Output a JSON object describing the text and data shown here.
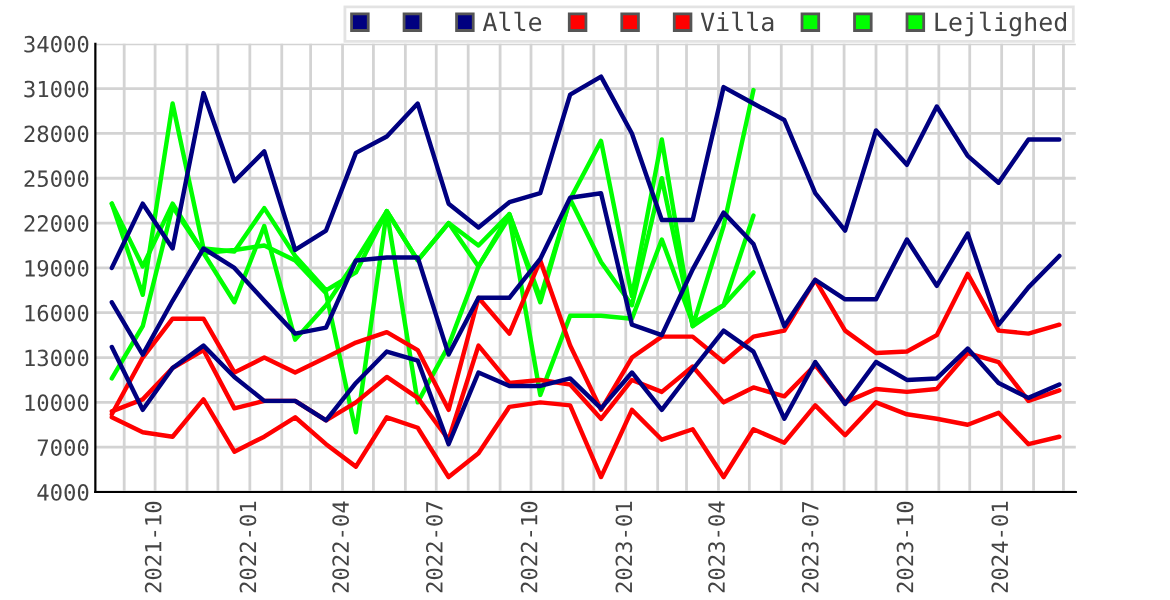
{
  "chart_data": {
    "type": "line",
    "x": [
      "2021-08-20",
      "2021-09-19",
      "2021-10-18",
      "2021-11-17",
      "2021-12-17",
      "2022-01-15",
      "2022-02-14",
      "2022-03-16",
      "2022-04-14",
      "2022-05-14",
      "2022-06-13",
      "2022-07-13",
      "2022-08-11",
      "2022-09-10",
      "2022-10-10",
      "2022-11-08",
      "2022-12-08",
      "2023-01-07",
      "2023-02-05",
      "2023-03-07",
      "2023-04-06",
      "2023-05-05",
      "2023-06-04",
      "2023-07-04",
      "2023-08-02",
      "2023-09-01",
      "2023-10-01",
      "2023-10-30",
      "2023-11-29",
      "2023-12-29",
      "2024-01-27",
      "2024-02-26"
    ],
    "series": [
      {
        "color": "#000080",
        "values": [
          19000,
          23300,
          20300,
          30700,
          24800,
          26800,
          20200,
          21500,
          26700,
          27800,
          30000,
          23300,
          21700,
          23400,
          24000,
          30600,
          31800,
          28000,
          22200,
          22200,
          31100,
          30000,
          28900,
          24000,
          21500,
          28200,
          25900,
          29800,
          26500,
          24700,
          27600,
          27600
        ]
      },
      {
        "color": "#000080",
        "values": [
          16700,
          13200,
          16800,
          20300,
          19000,
          16800,
          14600,
          15000,
          19500,
          19700,
          19700,
          13200,
          17000,
          17000,
          19600,
          23700,
          24000,
          15200,
          14500,
          18900,
          22700,
          20600,
          15100,
          18200,
          16900,
          16900,
          20900,
          17800,
          21300,
          15200,
          17700,
          19800
        ]
      },
      {
        "name": "Alle",
        "color": "#000080",
        "values": [
          13700,
          9500,
          12300,
          13800,
          11700,
          10100,
          10100,
          8800,
          11300,
          13400,
          12800,
          7200,
          12000,
          11100,
          11100,
          11600,
          9600,
          12000,
          9500,
          12200,
          14800,
          13400,
          8900,
          12700,
          9900,
          12700,
          11500,
          11600,
          13600,
          11300,
          10300,
          11200
        ]
      },
      {
        "color": "#ff0000",
        "values": [
          9200,
          13000,
          15600,
          15600,
          12000,
          13000,
          12000,
          13000,
          14000,
          14700,
          13500,
          9500,
          17000,
          14600,
          19500,
          13800,
          9500,
          13000,
          14400,
          14400,
          12700,
          14400,
          14800,
          18200,
          14800,
          13300,
          13400,
          14500,
          18600,
          14800,
          14600,
          15200
        ]
      },
      {
        "color": "#ff0000",
        "values": [
          9400,
          10200,
          12300,
          13500,
          9600,
          10100,
          10100,
          8800,
          10000,
          11700,
          10300,
          7500,
          13800,
          11300,
          11500,
          11200,
          8900,
          11500,
          10700,
          12400,
          10000,
          11000,
          10400,
          12500,
          10000,
          10900,
          10700,
          10900,
          13300,
          12700,
          10100,
          10800
        ]
      },
      {
        "name": "Villa",
        "color": "#ff0000",
        "values": [
          9000,
          8000,
          7700,
          10200,
          6700,
          7700,
          9000,
          7200,
          5700,
          9000,
          8300,
          5000,
          6600,
          9700,
          10000,
          9800,
          5000,
          9500,
          7500,
          8200,
          5000,
          8200,
          7300,
          9800,
          7800,
          10000,
          9200,
          8900,
          8500,
          9300,
          7200,
          7700
        ]
      },
      {
        "color": "#00ff00",
        "values": [
          23300,
          17200,
          30000,
          20300,
          20100,
          23000,
          19800,
          17500,
          18700,
          22800,
          19500,
          22000,
          20500,
          22600,
          16700,
          23600,
          27500,
          17100,
          27600,
          15100,
          21800,
          30900,
          null,
          null,
          null,
          null,
          null,
          null,
          null,
          null,
          null,
          null
        ]
      },
      {
        "color": "#00ff00",
        "values": [
          23300,
          19100,
          23300,
          20000,
          16700,
          21800,
          14200,
          16500,
          19500,
          22800,
          10000,
          13800,
          19100,
          22400,
          10500,
          15800,
          15800,
          15600,
          20900,
          15300,
          16500,
          22500,
          null,
          null,
          null,
          null,
          null,
          null,
          null,
          null,
          null,
          null
        ]
      },
      {
        "name": "Lejlighed",
        "color": "#00ff00",
        "values": [
          11600,
          15100,
          23100,
          20000,
          20200,
          20500,
          19500,
          17300,
          8000,
          22800,
          19500,
          22000,
          19100,
          22600,
          17000,
          23600,
          19400,
          16500,
          25000,
          15100,
          16500,
          18700,
          null,
          null,
          null,
          null,
          null,
          null,
          null,
          null,
          null,
          null
        ]
      }
    ],
    "xlim": [
      "2021-08-04",
      "2024-03-13"
    ],
    "xticks": [
      {
        "value": "2021-09",
        "label": null
      },
      {
        "value": "2021-10",
        "label": "2021-10"
      },
      {
        "value": "2021-11",
        "label": null
      },
      {
        "value": "2021-12",
        "label": null
      },
      {
        "value": "2022-01",
        "label": "2022-01"
      },
      {
        "value": "2022-02",
        "label": null
      },
      {
        "value": "2022-03",
        "label": null
      },
      {
        "value": "2022-04",
        "label": "2022-04"
      },
      {
        "value": "2022-05",
        "label": null
      },
      {
        "value": "2022-06",
        "label": null
      },
      {
        "value": "2022-07",
        "label": "2022-07"
      },
      {
        "value": "2022-08",
        "label": null
      },
      {
        "value": "2022-09",
        "label": null
      },
      {
        "value": "2022-10",
        "label": "2022-10"
      },
      {
        "value": "2022-11",
        "label": null
      },
      {
        "value": "2022-12",
        "label": null
      },
      {
        "value": "2023-01",
        "label": "2023-01"
      },
      {
        "value": "2023-02",
        "label": null
      },
      {
        "value": "2023-03",
        "label": null
      },
      {
        "value": "2023-04",
        "label": "2023-04"
      },
      {
        "value": "2023-05",
        "label": null
      },
      {
        "value": "2023-06",
        "label": null
      },
      {
        "value": "2023-07",
        "label": "2023-07"
      },
      {
        "value": "2023-08",
        "label": null
      },
      {
        "value": "2023-09",
        "label": null
      },
      {
        "value": "2023-10",
        "label": "2023-10"
      },
      {
        "value": "2023-11",
        "label": null
      },
      {
        "value": "2023-12",
        "label": null
      },
      {
        "value": "2024-01",
        "label": "2024-01"
      },
      {
        "value": "2024-02",
        "label": null
      },
      {
        "value": "2024-03",
        "label": null
      }
    ],
    "ylim": [
      4000,
      34000
    ],
    "yticks": [
      4000,
      7000,
      10000,
      13000,
      16000,
      19000,
      22000,
      25000,
      28000,
      31000,
      34000
    ],
    "grid": true,
    "legend": "top right",
    "marker": "none",
    "line_style": "solid"
  }
}
